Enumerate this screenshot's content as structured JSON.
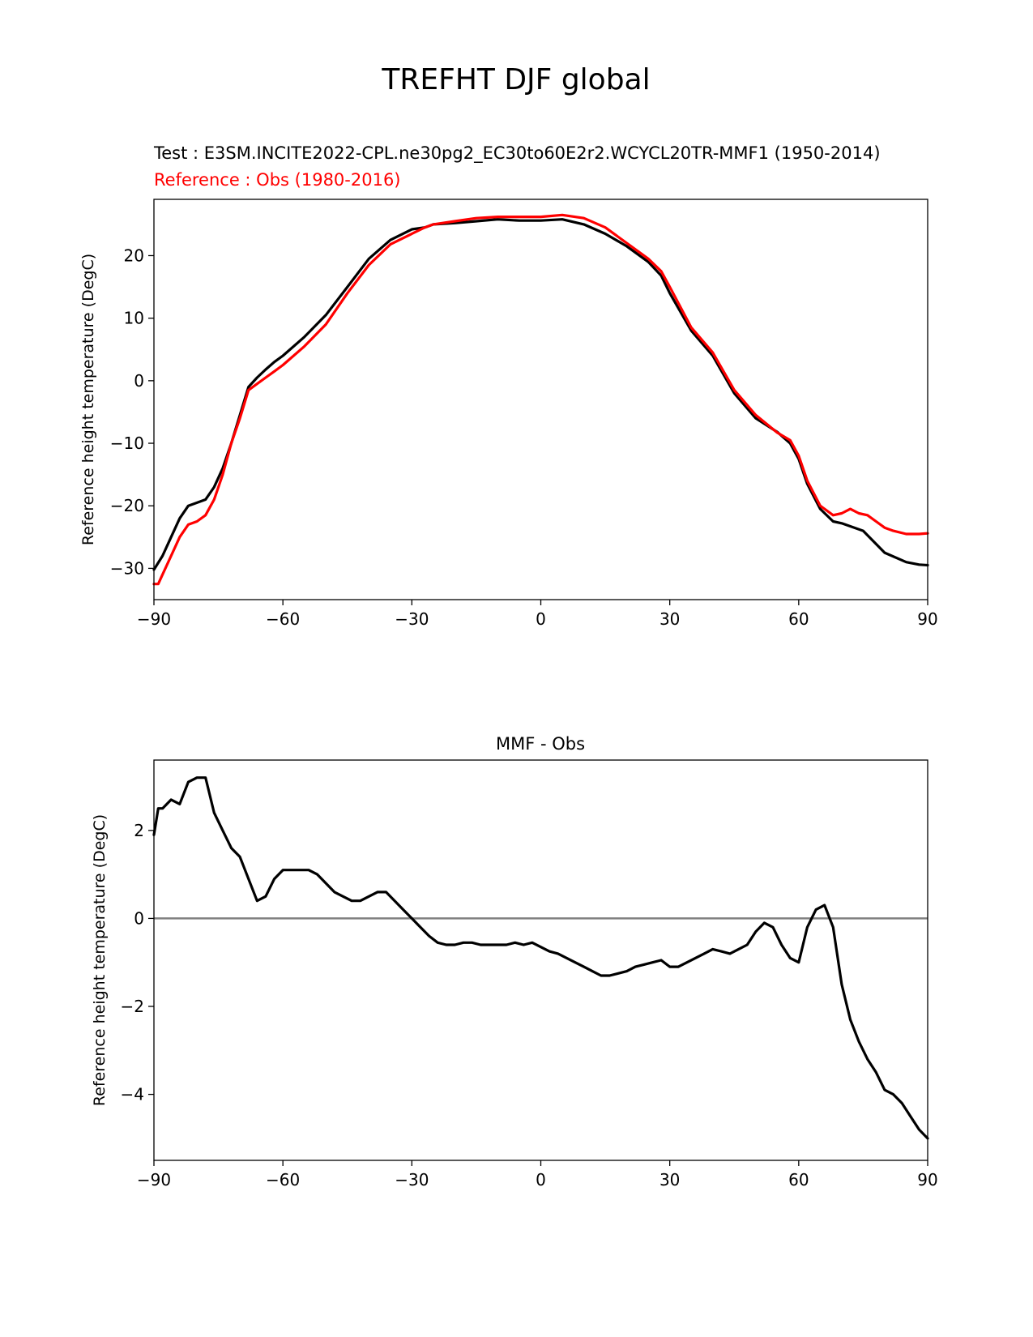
{
  "figure": {
    "suptitle": "TREFHT DJF global",
    "test_label": "Test : E3SM.INCITE2022-CPL.ne30pg2_EC30to60E2r2.WCYCL20TR-MMF1 (1950-2014)",
    "reference_label": "Reference : Obs (1980-2016)"
  },
  "colors": {
    "test": "#000000",
    "reference": "#ff0000",
    "zero_line": "#808080"
  },
  "chart_data": [
    {
      "type": "line",
      "title": "",
      "xlabel": "",
      "ylabel": "Reference height temperature (DegC)",
      "xlim": [
        -90,
        90
      ],
      "ylim": [
        -35,
        29
      ],
      "xticks": [
        -90,
        -60,
        -30,
        0,
        30,
        60,
        90
      ],
      "xtick_labels": [
        "−90",
        "−60",
        "−30",
        "0",
        "30",
        "60",
        "90"
      ],
      "yticks": [
        -30,
        -20,
        -10,
        0,
        10,
        20
      ],
      "ytick_labels": [
        "−30",
        "−20",
        "−10",
        "0",
        "10",
        "20"
      ],
      "grid": false,
      "series": [
        {
          "name": "Test",
          "color": "#000000",
          "x": [
            -90,
            -88,
            -86,
            -84,
            -82,
            -80,
            -78,
            -76,
            -74,
            -72,
            -70,
            -68,
            -66,
            -64,
            -62,
            -60,
            -55,
            -50,
            -45,
            -40,
            -35,
            -30,
            -27,
            -25,
            -20,
            -15,
            -10,
            -5,
            0,
            5,
            10,
            15,
            20,
            25,
            28,
            30,
            35,
            40,
            45,
            50,
            55,
            58,
            60,
            62,
            65,
            68,
            70,
            75,
            80,
            85,
            88,
            90
          ],
          "values": [
            -30.2,
            -28,
            -25,
            -22,
            -20,
            -19.5,
            -19,
            -17,
            -14,
            -10,
            -5.5,
            -1,
            0.5,
            1.8,
            3,
            4,
            7,
            10.5,
            15,
            19.5,
            22.5,
            24.2,
            24.5,
            25,
            25.2,
            25.5,
            25.8,
            25.6,
            25.6,
            25.8,
            25,
            23.5,
            21.5,
            19,
            16.8,
            14,
            8,
            4,
            -2,
            -6,
            -8.2,
            -10,
            -12.5,
            -16.5,
            -20.5,
            -22.5,
            -22.8,
            -24,
            -27.5,
            -29,
            -29.4,
            -29.5
          ]
        },
        {
          "name": "Reference",
          "color": "#ff0000",
          "x": [
            -90,
            -89,
            -88,
            -86,
            -84,
            -82,
            -80,
            -78,
            -76,
            -74,
            -72,
            -70,
            -68,
            -66,
            -64,
            -62,
            -60,
            -55,
            -50,
            -45,
            -40,
            -35,
            -30,
            -27,
            -25,
            -20,
            -15,
            -10,
            -5,
            0,
            5,
            10,
            15,
            20,
            25,
            28,
            30,
            35,
            40,
            45,
            50,
            55,
            58,
            60,
            62,
            65,
            68,
            70,
            72,
            74,
            76,
            78,
            80,
            82,
            85,
            88,
            90
          ],
          "values": [
            -32.5,
            -32.5,
            -31,
            -28,
            -25,
            -23,
            -22.5,
            -21.5,
            -19,
            -15,
            -10,
            -6,
            -1.5,
            -0.5,
            0.5,
            1.5,
            2.5,
            5.5,
            9,
            14,
            18.5,
            21.8,
            23.5,
            24.5,
            25,
            25.5,
            26,
            26.2,
            26.2,
            26.2,
            26.5,
            26,
            24.5,
            22,
            19.5,
            17.5,
            15,
            8.5,
            4.5,
            -1.5,
            -5.5,
            -8.3,
            -9.5,
            -12,
            -16,
            -20,
            -21.5,
            -21.2,
            -20.5,
            -21.2,
            -21.5,
            -22.5,
            -23.5,
            -24,
            -24.5,
            -24.5,
            -24.4
          ]
        }
      ]
    },
    {
      "type": "line",
      "title": "MMF - Obs",
      "xlabel": "",
      "ylabel": "Reference height temperature (DegC)",
      "xlim": [
        -90,
        90
      ],
      "ylim": [
        -5.5,
        3.6
      ],
      "xticks": [
        -90,
        -60,
        -30,
        0,
        30,
        60,
        90
      ],
      "xtick_labels": [
        "−90",
        "−60",
        "−30",
        "0",
        "30",
        "60",
        "90"
      ],
      "yticks": [
        -4,
        -2,
        0,
        2
      ],
      "ytick_labels": [
        "−4",
        "−2",
        "0",
        "2"
      ],
      "grid": false,
      "zero_line": 0,
      "series": [
        {
          "name": "MMF - Obs",
          "color": "#000000",
          "x": [
            -90,
            -89,
            -88,
            -86,
            -84,
            -82,
            -80,
            -78,
            -76,
            -74,
            -72,
            -70,
            -68,
            -66,
            -64,
            -62,
            -60,
            -58,
            -56,
            -54,
            -52,
            -50,
            -48,
            -46,
            -44,
            -42,
            -40,
            -38,
            -36,
            -34,
            -32,
            -30,
            -28,
            -26,
            -24,
            -22,
            -20,
            -18,
            -16,
            -14,
            -12,
            -10,
            -8,
            -6,
            -4,
            -2,
            0,
            2,
            4,
            6,
            8,
            10,
            12,
            14,
            16,
            18,
            20,
            22,
            24,
            26,
            28,
            30,
            32,
            34,
            36,
            38,
            40,
            42,
            44,
            46,
            48,
            50,
            52,
            54,
            56,
            58,
            60,
            62,
            64,
            66,
            68,
            70,
            72,
            74,
            76,
            78,
            80,
            82,
            84,
            86,
            88,
            90
          ],
          "values": [
            1.9,
            2.5,
            2.5,
            2.7,
            2.6,
            3.1,
            3.2,
            3.2,
            2.4,
            2.0,
            1.6,
            1.4,
            0.9,
            0.4,
            0.5,
            0.9,
            1.1,
            1.1,
            1.1,
            1.1,
            1.0,
            0.8,
            0.6,
            0.5,
            0.4,
            0.4,
            0.5,
            0.6,
            0.6,
            0.4,
            0.2,
            0.0,
            -0.2,
            -0.4,
            -0.55,
            -0.6,
            -0.6,
            -0.55,
            -0.55,
            -0.6,
            -0.6,
            -0.6,
            -0.6,
            -0.55,
            -0.6,
            -0.55,
            -0.65,
            -0.75,
            -0.8,
            -0.9,
            -1.0,
            -1.1,
            -1.2,
            -1.3,
            -1.3,
            -1.25,
            -1.2,
            -1.1,
            -1.05,
            -1.0,
            -0.95,
            -1.1,
            -1.1,
            -1.0,
            -0.9,
            -0.8,
            -0.7,
            -0.75,
            -0.8,
            -0.7,
            -0.6,
            -0.3,
            -0.1,
            -0.2,
            -0.6,
            -0.9,
            -1.0,
            -0.2,
            0.2,
            0.3,
            -0.2,
            -1.5,
            -2.3,
            -2.8,
            -3.2,
            -3.5,
            -3.9,
            -4.0,
            -4.2,
            -4.5,
            -4.8,
            -5.0
          ]
        }
      ]
    }
  ]
}
